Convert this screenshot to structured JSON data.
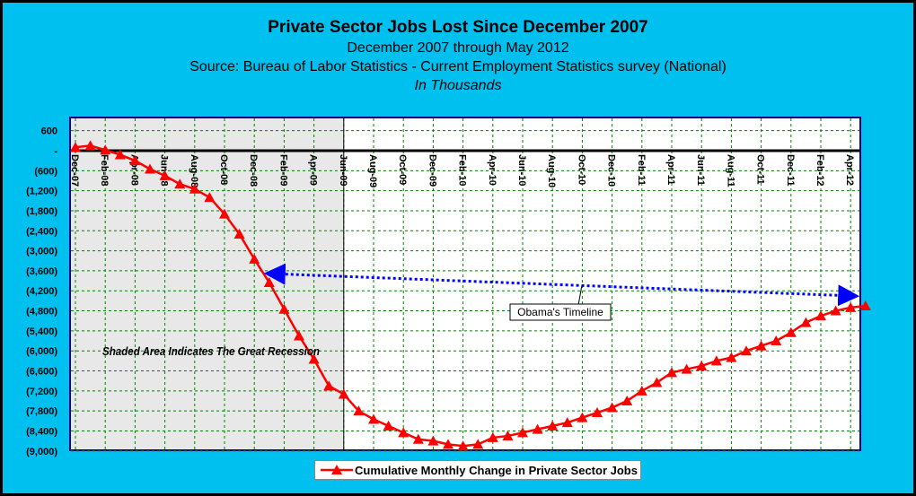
{
  "chart_data": {
    "type": "line",
    "title": "Private Sector Jobs Lost Since December 2007",
    "subtitle_lines": [
      "December 2007 through May 2012",
      "Source: Bureau of Labor Statistics - Current Employment Statistics survey (National)",
      "In Thousands"
    ],
    "ylim": [
      -9000,
      900
    ],
    "y_ticks": [
      600,
      0,
      -600,
      -1200,
      -1800,
      -2400,
      -3000,
      -3600,
      -4200,
      -4800,
      -5400,
      -6000,
      -6600,
      -7200,
      -7800,
      -8400,
      -9000
    ],
    "y_tick_labels": [
      "600",
      "-",
      "(600)",
      "(1,200)",
      "(1,800)",
      "(2,400)",
      "(3,000)",
      "(3,600)",
      "(4,200)",
      "(4,800)",
      "(5,400)",
      "(6,000)",
      "(6,600)",
      "(7,200)",
      "(7,800)",
      "(8,400)",
      "(9,000)"
    ],
    "x_tick_labels": [
      "Dec-07",
      "Feb-08",
      "Apr-08",
      "Jun-08",
      "Aug-08",
      "Oct-08",
      "Dec-08",
      "Feb-09",
      "Apr-09",
      "Jun-09",
      "Aug-09",
      "Oct-09",
      "Dec-09",
      "Feb-10",
      "Apr-10",
      "Jun-10",
      "Aug-10",
      "Oct-10",
      "Dec-10",
      "Feb-11",
      "Apr-11",
      "Jun-11",
      "Aug-11",
      "Oct-11",
      "Dec-11",
      "Feb-12",
      "Apr-12"
    ],
    "grid": true,
    "legend_position": "bottom",
    "colors": {
      "series": "#ff0000",
      "shade": "#e8e8e8",
      "plot_background": "#ffffff",
      "grid": "#008000",
      "arrow": "#0000ff",
      "page_background": "#00c0f0"
    },
    "shaded_region": {
      "from": "Dec-07",
      "to": "Jun-09",
      "label": "Shaded Area Indicates The Great Recession"
    },
    "annotation": {
      "label": "Obama's Timeline",
      "from": "Jan-09",
      "to": "Apr-12"
    },
    "series": [
      {
        "name": "Cumulative Monthly Change in Private Sector Jobs",
        "x": [
          "Dec-07",
          "Jan-08",
          "Feb-08",
          "Mar-08",
          "Apr-08",
          "May-08",
          "Jun-08",
          "Jul-08",
          "Aug-08",
          "Sep-08",
          "Oct-08",
          "Nov-08",
          "Dec-08",
          "Jan-09",
          "Feb-09",
          "Mar-09",
          "Apr-09",
          "May-09",
          "Jun-09",
          "Jul-09",
          "Aug-09",
          "Sep-09",
          "Oct-09",
          "Nov-09",
          "Dec-09",
          "Jan-10",
          "Feb-10",
          "Mar-10",
          "Apr-10",
          "May-10",
          "Jun-10",
          "Jul-10",
          "Aug-10",
          "Sep-10",
          "Oct-10",
          "Nov-10",
          "Dec-10",
          "Jan-11",
          "Feb-11",
          "Mar-11",
          "Apr-11",
          "May-11",
          "Jun-11",
          "Jul-11",
          "Aug-11",
          "Sep-11",
          "Oct-11",
          "Nov-11",
          "Dec-11",
          "Jan-12",
          "Feb-12",
          "Mar-12",
          "Apr-12",
          "May-12"
        ],
        "values": [
          100,
          150,
          20,
          -120,
          -300,
          -550,
          -750,
          -1000,
          -1150,
          -1400,
          -1900,
          -2500,
          -3250,
          -3950,
          -4750,
          -5550,
          -6250,
          -7050,
          -7300,
          -7800,
          -8050,
          -8250,
          -8450,
          -8650,
          -8700,
          -8800,
          -8850,
          -8800,
          -8600,
          -8550,
          -8450,
          -8350,
          -8250,
          -8150,
          -8000,
          -7850,
          -7700,
          -7500,
          -7200,
          -6950,
          -6650,
          -6550,
          -6450,
          -6300,
          -6200,
          -6000,
          -5850,
          -5700,
          -5450,
          -5150,
          -4950,
          -4800,
          -4700,
          -4650
        ]
      }
    ]
  }
}
